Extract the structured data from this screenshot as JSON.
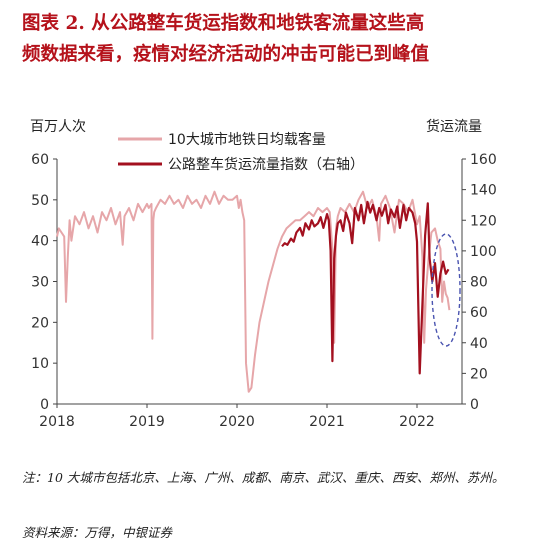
{
  "figure": {
    "title_line1": "图表 2.  从公路整车货运指数和地铁客流量这些高",
    "title_line2": "频数据来看，疫情对经济活动的冲击可能已到峰值",
    "note": "注：10 大城市包括北京、上海、广州、成都、南京、武汉、重庆、西安、郑州、苏州。",
    "source": "资料来源：万得，中银证券"
  },
  "colors": {
    "series1": "#e6a6a9",
    "series2": "#a3101f",
    "highlight": "#4a54b0",
    "axis": "#444444"
  },
  "chart_data": {
    "type": "line",
    "ylabel_left": "百万人次",
    "ylabel_right": "货运流量",
    "ylim_left": [
      0,
      60
    ],
    "ylim_right": [
      0,
      160
    ],
    "yticks_left": [
      "0",
      "10",
      "20",
      "30",
      "40",
      "50",
      "60"
    ],
    "yticks_right": [
      "0",
      "20",
      "40",
      "60",
      "80",
      "100",
      "120",
      "140",
      "160"
    ],
    "xlim": [
      2018.0,
      2022.5
    ],
    "xticks": [
      "2018",
      "2019",
      "2020",
      "2021",
      "2022"
    ],
    "grid": false,
    "legend": "top",
    "series": [
      {
        "name": "10大城市地铁日均载客量",
        "axis": "left",
        "x": [
          2018.0,
          2018.02,
          2018.05,
          2018.08,
          2018.1,
          2018.12,
          2018.14,
          2018.16,
          2018.2,
          2018.25,
          2018.3,
          2018.35,
          2018.4,
          2018.45,
          2018.5,
          2018.55,
          2018.6,
          2018.65,
          2018.7,
          2018.73,
          2018.75,
          2018.8,
          2018.85,
          2018.9,
          2018.95,
          2019.0,
          2019.02,
          2019.05,
          2019.06,
          2019.07,
          2019.08,
          2019.1,
          2019.15,
          2019.2,
          2019.25,
          2019.3,
          2019.35,
          2019.4,
          2019.45,
          2019.5,
          2019.55,
          2019.6,
          2019.65,
          2019.7,
          2019.75,
          2019.8,
          2019.85,
          2019.9,
          2019.95,
          2020.0,
          2020.02,
          2020.04,
          2020.06,
          2020.08,
          2020.1,
          2020.13,
          2020.16,
          2020.2,
          2020.25,
          2020.3,
          2020.35,
          2020.4,
          2020.45,
          2020.5,
          2020.55,
          2020.6,
          2020.65,
          2020.7,
          2020.75,
          2020.8,
          2020.85,
          2020.9,
          2020.95,
          2021.0,
          2021.03,
          2021.06,
          2021.08,
          2021.1,
          2021.12,
          2021.15,
          2021.2,
          2021.25,
          2021.3,
          2021.35,
          2021.4,
          2021.45,
          2021.5,
          2021.55,
          2021.58,
          2021.6,
          2021.65,
          2021.7,
          2021.75,
          2021.8,
          2021.85,
          2021.9,
          2021.95,
          2022.0,
          2022.03,
          2022.06,
          2022.08,
          2022.1,
          2022.13,
          2022.16,
          2022.2,
          2022.23,
          2022.26,
          2022.28,
          2022.3,
          2022.32,
          2022.34,
          2022.36
        ],
        "values": [
          41,
          43,
          42,
          41,
          25,
          36,
          45,
          40,
          46,
          44,
          47,
          43,
          46,
          42,
          47,
          45,
          48,
          44,
          47,
          39,
          46,
          48,
          45,
          49,
          47,
          49,
          48,
          49,
          16,
          45,
          47,
          48,
          50,
          49,
          51,
          49,
          50,
          48,
          51,
          49,
          50,
          48,
          51,
          49,
          52,
          49,
          51,
          50,
          50,
          51,
          48,
          50,
          47,
          45,
          10,
          3,
          4,
          12,
          20,
          25,
          30,
          34,
          38,
          41,
          43,
          44,
          45,
          45,
          46,
          47,
          46,
          48,
          47,
          48,
          47,
          38,
          15,
          43,
          46,
          48,
          47,
          49,
          47,
          50,
          52,
          48,
          50,
          46,
          40,
          49,
          51,
          48,
          42,
          50,
          49,
          47,
          50,
          44,
          46,
          36,
          15,
          28,
          36,
          42,
          43,
          40,
          38,
          25,
          30,
          27,
          26,
          23
        ]
      },
      {
        "name": "公路整车货运流量指数（右轴）",
        "axis": "right",
        "x": [
          2020.5,
          2020.53,
          2020.56,
          2020.6,
          2020.63,
          2020.66,
          2020.7,
          2020.73,
          2020.76,
          2020.8,
          2020.83,
          2020.86,
          2020.9,
          2020.93,
          2020.96,
          2021.0,
          2021.02,
          2021.04,
          2021.06,
          2021.08,
          2021.1,
          2021.12,
          2021.15,
          2021.18,
          2021.21,
          2021.25,
          2021.28,
          2021.31,
          2021.35,
          2021.38,
          2021.41,
          2021.45,
          2021.48,
          2021.51,
          2021.55,
          2021.58,
          2021.61,
          2021.65,
          2021.68,
          2021.71,
          2021.75,
          2021.78,
          2021.81,
          2021.85,
          2021.88,
          2021.91,
          2021.95,
          2021.98,
          2022.0,
          2022.03,
          2022.06,
          2022.09,
          2022.12,
          2022.14,
          2022.17,
          2022.2,
          2022.23,
          2022.26,
          2022.29,
          2022.32,
          2022.35
        ],
        "values": [
          103,
          105,
          104,
          108,
          106,
          112,
          115,
          110,
          118,
          114,
          120,
          116,
          118,
          122,
          115,
          124,
          120,
          100,
          28,
          95,
          110,
          118,
          120,
          113,
          125,
          118,
          105,
          128,
          120,
          130,
          118,
          132,
          125,
          130,
          120,
          128,
          123,
          130,
          118,
          127,
          122,
          129,
          115,
          130,
          120,
          128,
          125,
          118,
          106,
          20,
          65,
          110,
          131,
          95,
          80,
          92,
          70,
          85,
          93,
          85,
          88
        ]
      }
    ]
  }
}
